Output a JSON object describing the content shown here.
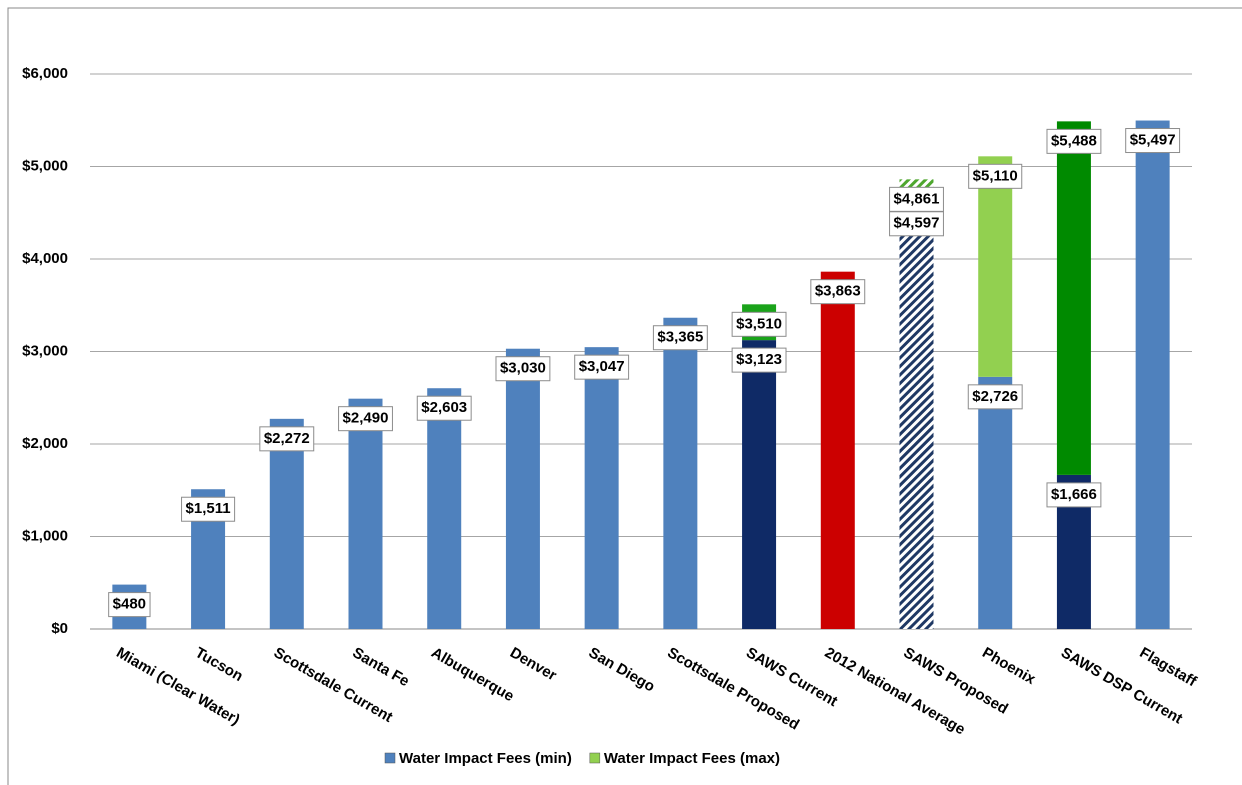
{
  "chart_data": {
    "type": "range_bar",
    "categories": [
      "Miami (Clear Water)",
      "Tucson",
      "Scottsdale Current",
      "Santa Fe",
      "Albuquerque",
      "Denver",
      "San Diego",
      "Scottsdale Proposed",
      "SAWS Current",
      "2012 National Average",
      "SAWS Proposed",
      "Phoenix",
      "SAWS DSP Current",
      "Flagstaff"
    ],
    "series": [
      {
        "name": "Water Impact Fees (min)",
        "color": "#4f81bd",
        "values": [
          480,
          1511,
          2272,
          2490,
          2603,
          3030,
          3047,
          3365,
          3123,
          3863,
          4597,
          2726,
          1666,
          5497
        ],
        "value_labels": [
          "$480",
          "$1,511",
          "$2,272",
          "$2,490",
          "$2,603",
          "$3,030",
          "$3,047",
          "$3,365",
          "$3,123",
          "$3,863",
          "$4,597",
          "$2,726",
          "$1,666",
          "$5,497"
        ],
        "colors": [
          "#4f81bd",
          "#4f81bd",
          "#4f81bd",
          "#4f81bd",
          "#4f81bd",
          "#4f81bd",
          "#4f81bd",
          "#4f81bd",
          "#0f2a66",
          "#cc0000",
          "#1f3864",
          "#4f81bd",
          "#0f2a66",
          "#4f81bd"
        ],
        "hatch": [
          false,
          false,
          false,
          false,
          false,
          false,
          false,
          false,
          false,
          false,
          true,
          false,
          false,
          false
        ]
      },
      {
        "name": "Water Impact Fees (max)",
        "color": "#92d050",
        "values": [
          null,
          null,
          null,
          null,
          null,
          null,
          null,
          null,
          3510,
          null,
          4861,
          5110,
          5488,
          null
        ],
        "value_labels": [
          null,
          null,
          null,
          null,
          null,
          null,
          null,
          null,
          "$3,510",
          null,
          "$4,861",
          "$5,110",
          "$5,488",
          null
        ],
        "colors": [
          null,
          null,
          null,
          null,
          null,
          null,
          null,
          null,
          "#1aa31a",
          null,
          "#4ea72e",
          "#92d050",
          "#008a00",
          null
        ],
        "hatch": [
          false,
          false,
          false,
          false,
          false,
          false,
          false,
          false,
          false,
          false,
          true,
          false,
          false,
          false
        ]
      }
    ],
    "ylim": [
      0,
      6000
    ],
    "yticks": [
      {
        "value": 0,
        "label": "$0"
      },
      {
        "value": 1000,
        "label": "$1,000"
      },
      {
        "value": 2000,
        "label": "$2,000"
      },
      {
        "value": 3000,
        "label": "$3,000"
      },
      {
        "value": 4000,
        "label": "$4,000"
      },
      {
        "value": 5000,
        "label": "$5,000"
      },
      {
        "value": 6000,
        "label": "$6,000"
      }
    ],
    "grid": true,
    "legend": "bottom"
  }
}
